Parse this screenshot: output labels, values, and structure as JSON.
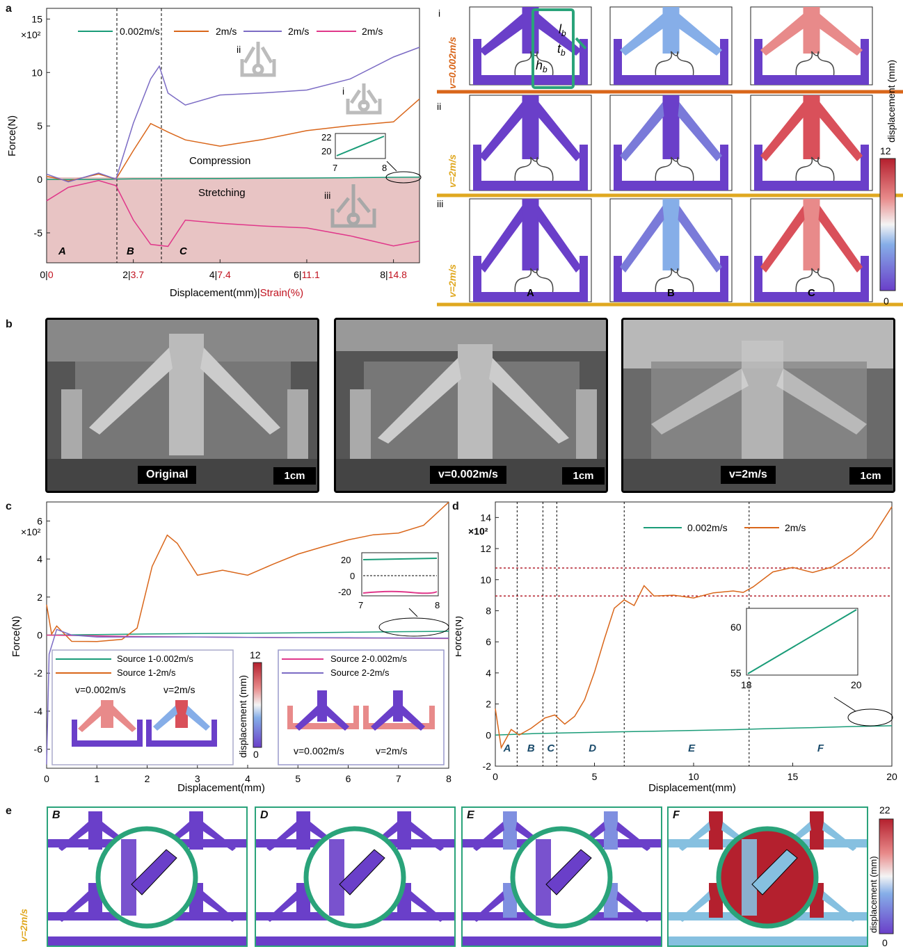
{
  "panels": {
    "a": "a",
    "b": "b",
    "c": "c",
    "d": "d",
    "e": "e"
  },
  "colors": {
    "green": "#1a9c78",
    "orange": "#d9661a",
    "purple": "#7b6bc4",
    "pink": "#e0378a",
    "sim_purple": "#6a3fc9",
    "sim_red": "#d9505a",
    "sim_blue": "#86aee8",
    "orange_line": "#d9661a",
    "yellow_line": "#e0a820",
    "stretch_fill": "#e8c4c4"
  },
  "chart_a": {
    "type": "line",
    "scale_label": "×10²",
    "ylabel": "Force(N)",
    "xlabel_main": "Displacement(mm)|",
    "xlabel_strain": "Strain(%)",
    "xlim": [
      0,
      8.6
    ],
    "ylim": [
      -7.8,
      16
    ],
    "yticks": [
      "15",
      "10",
      "5",
      "0",
      "-5"
    ],
    "xticks": [
      {
        "main": "0|",
        "strain": "0"
      },
      {
        "main": "2|",
        "strain": "3.7"
      },
      {
        "main": "4|",
        "strain": "7.4"
      },
      {
        "main": "6|",
        "strain": "11.1"
      },
      {
        "main": "8|",
        "strain": "14.8"
      }
    ],
    "legend": [
      "0.002m/s",
      "2m/s",
      "2m/s",
      "2m/s"
    ],
    "region_labels": {
      "compression": "Compression",
      "stretching": "Stretching"
    },
    "stage_labels": [
      "A",
      "B",
      "C"
    ],
    "roman": [
      "i",
      "ii",
      "iii"
    ],
    "inset": {
      "yticks": [
        "22",
        "20"
      ],
      "xticks": [
        "7",
        "8"
      ]
    },
    "series": [
      {
        "name": "0.002m/s",
        "x": [
          0,
          1,
          2,
          3,
          4,
          5,
          6,
          7,
          8,
          8.6
        ],
        "y": [
          0,
          0,
          0.05,
          0.07,
          0.09,
          0.11,
          0.13,
          0.16,
          0.2,
          0.22
        ]
      },
      {
        "name": "2m/s",
        "x": [
          0,
          0.5,
          1.2,
          1.6,
          2.0,
          2.4,
          2.8,
          3.2,
          4,
          5,
          6,
          7,
          8,
          8.6
        ],
        "y": [
          0.3,
          0.1,
          0.2,
          0.3,
          2.5,
          5.3,
          4.5,
          3.5,
          3.4,
          3.8,
          4.3,
          4.8,
          5.5,
          7.8
        ]
      },
      {
        "name": "2m/s",
        "x": [
          0,
          0.5,
          1.2,
          1.6,
          2.0,
          2.4,
          2.6,
          2.8,
          3.2,
          4,
          5,
          6,
          7,
          8,
          8.6
        ],
        "y": [
          0.5,
          0.1,
          0.2,
          0.4,
          5,
          9.5,
          10.6,
          8,
          7.2,
          7.5,
          8,
          8.7,
          9.7,
          11.3,
          12
        ]
      },
      {
        "name": "2m/s",
        "x": [
          0,
          0.5,
          1.2,
          1.6,
          2.0,
          2.4,
          2.8,
          3.2,
          4,
          5,
          6,
          7,
          8,
          8.6
        ],
        "y": [
          -2,
          -0.5,
          -0.4,
          -0.3,
          -4,
          -6,
          -6.2,
          -4,
          -3.8,
          -4.3,
          -4.8,
          -5.5,
          -6.1,
          -5.5
        ]
      }
    ]
  },
  "sim_grid": {
    "row_labels": [
      "v=0.002m/s",
      "v=2m/s",
      "v=2m/s"
    ],
    "roman": [
      "i",
      "ii",
      "iii"
    ],
    "geom_labels": {
      "l": "l",
      "t": "t",
      "h": "h",
      "sub": "b"
    },
    "col_labels": [
      "A",
      "B",
      "C"
    ],
    "colorbar": {
      "max": "12",
      "min": "0",
      "label": "displacement (mm)"
    }
  },
  "photos": {
    "labels": [
      "Original",
      "v=0.002m/s",
      "v=2m/s"
    ],
    "scale": "1cm"
  },
  "chart_c": {
    "type": "line",
    "scale_label": "×10²",
    "ylabel": "Force(N)",
    "xlabel": "Displacement(mm)",
    "xlim": [
      0,
      8
    ],
    "ylim": [
      -7,
      7
    ],
    "yticks": [
      "6",
      "4",
      "2",
      "0",
      "-2",
      "-4",
      "-6"
    ],
    "xticks": [
      "0",
      "1",
      "2",
      "3",
      "4",
      "5",
      "6",
      "7",
      "8"
    ],
    "inset": {
      "yticks": [
        "20",
        "0",
        "-20"
      ],
      "xticks": [
        "7",
        "8"
      ]
    },
    "legend_left": [
      "Source 1-0.002m/s",
      "Source 1-2m/s"
    ],
    "legend_right": [
      "Source 2-0.002m/s",
      "Source 2-2m/s"
    ],
    "sub_labels": [
      "v=0.002m/s",
      "v=2m/s",
      "v=0.002m/s",
      "v=2m/s"
    ],
    "colorbar": {
      "max": "12",
      "min": "0",
      "label": "displacement (mm)"
    },
    "series": [
      {
        "name": "Source 1-0.002m/s",
        "x": [
          0,
          1,
          2,
          3,
          4,
          5,
          6,
          7,
          8
        ],
        "y": [
          0,
          0.03,
          0.06,
          0.08,
          0.1,
          0.12,
          0.15,
          0.18,
          0.2
        ]
      },
      {
        "name": "Source 1-2m/s",
        "x": [
          0,
          0.1,
          0.2,
          0.5,
          1,
          1.5,
          1.8,
          2.1,
          2.4,
          2.6,
          3,
          3.5,
          4,
          4.5,
          5,
          5.5,
          6,
          6.5,
          7,
          7.5,
          8
        ],
        "y": [
          1.6,
          0.2,
          0.5,
          -0.2,
          -0.2,
          -0.2,
          0.5,
          3.5,
          5.2,
          4.8,
          3.1,
          3.5,
          3.3,
          3.8,
          4.2,
          4.5,
          4.9,
          5.3,
          5.5,
          5.9,
          7
        ]
      },
      {
        "name": "Source 2-0.002m/s",
        "x": [
          0,
          1,
          2,
          3,
          4,
          5,
          6,
          7,
          8
        ],
        "y": [
          0,
          -0.04,
          -0.08,
          -0.1,
          -0.12,
          -0.14,
          -0.15,
          -0.16,
          -0.18
        ]
      },
      {
        "name": "Source 2-2m/s",
        "x": [
          0,
          0.05,
          0.2,
          0.5,
          1,
          2,
          3,
          4,
          5,
          6,
          7,
          8
        ],
        "y": [
          -6.8,
          -1,
          0.3,
          0,
          -0.1,
          -0.1,
          -0.1,
          -0.12,
          -0.13,
          -0.14,
          -0.15,
          -0.16
        ]
      }
    ]
  },
  "chart_d": {
    "type": "line",
    "scale_label": "×10²",
    "ylabel": "Force(N)",
    "xlabel": "Displacement(mm)",
    "xlim": [
      0,
      20
    ],
    "ylim": [
      -2,
      15
    ],
    "yticks": [
      "14",
      "12",
      "10",
      "8",
      "6",
      "4",
      "2",
      "0",
      "-2"
    ],
    "xticks": [
      "0",
      "5",
      "10",
      "15",
      "20"
    ],
    "legend": [
      "0.002m/s",
      "2m/s"
    ],
    "stage_labels": [
      "A",
      "B",
      "C",
      "D",
      "E",
      "F"
    ],
    "hlines": [
      10.75,
      8.95
    ],
    "vlines": [
      1.1,
      2.4,
      3.1,
      6.5,
      12.8
    ],
    "inset": {
      "yticks": [
        "60",
        "55"
      ],
      "xticks": [
        "18",
        "20"
      ]
    },
    "series": [
      {
        "name": "0.002m/s",
        "x": [
          0,
          2,
          4,
          6,
          8,
          10,
          12,
          14,
          16,
          18,
          20
        ],
        "y": [
          0,
          0.1,
          0.15,
          0.2,
          0.25,
          0.3,
          0.35,
          0.42,
          0.48,
          0.55,
          0.6
        ]
      },
      {
        "name": "2m/s",
        "x": [
          0,
          0.3,
          0.8,
          1.2,
          1.8,
          2.5,
          3,
          3.5,
          4,
          4.5,
          5,
          5.5,
          6,
          6.5,
          7,
          7.5,
          8,
          9,
          10,
          11,
          12,
          12.5,
          13,
          14,
          15,
          16,
          17,
          18,
          19,
          20
        ],
        "y": [
          1.7,
          -1,
          0.2,
          0.2,
          0.6,
          0.9,
          1.2,
          0.8,
          1.4,
          2.4,
          4,
          6,
          8,
          8.7,
          8.5,
          9.8,
          9,
          9.2,
          8.9,
          9,
          9.1,
          9,
          9.5,
          10.3,
          10.7,
          10.6,
          11,
          11.6,
          12.5,
          14.6
        ]
      }
    ]
  },
  "panel_e": {
    "row_label": "v=2m/s",
    "labels": [
      "B",
      "D",
      "E",
      "F"
    ],
    "colorbar": {
      "max": "22",
      "min": "0",
      "label": "displacement (mm)"
    }
  }
}
